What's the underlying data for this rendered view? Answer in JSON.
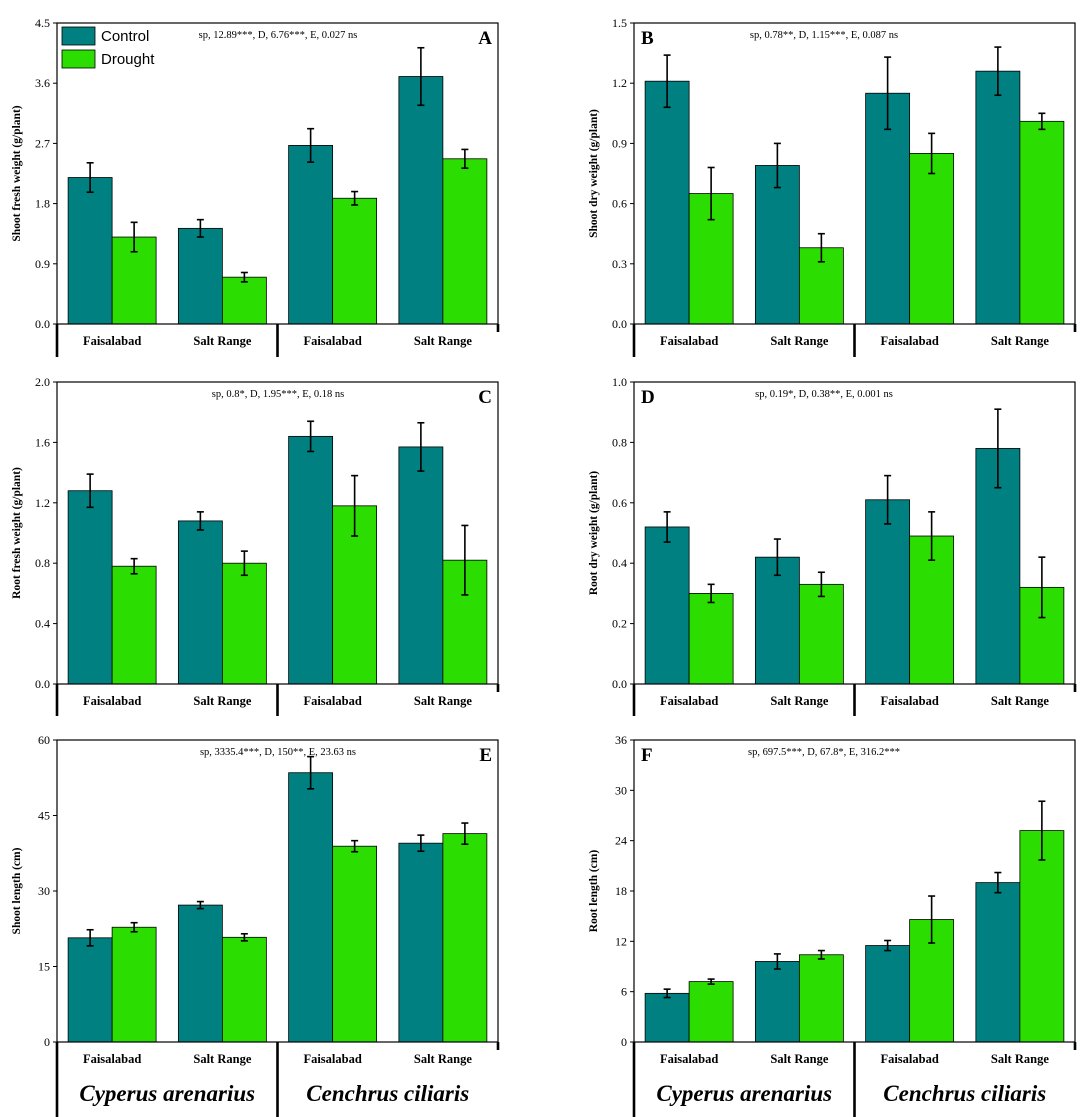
{
  "legend": {
    "items": [
      {
        "label": "Control",
        "color": "#008080"
      },
      {
        "label": "Drought",
        "color": "#2BDD00"
      }
    ]
  },
  "colors": {
    "control": "#008080",
    "drought": "#2BDD00",
    "axis": "#000000"
  },
  "groups": {
    "species": [
      "Cyperus arenarius",
      "Cenchrus ciliaris"
    ],
    "sites": [
      "Faisalabad",
      "Salt Range",
      "Faisalabad",
      "Salt Range"
    ]
  },
  "chart_data": [
    {
      "panel": "A",
      "type": "bar",
      "ylabel": "Shoot fresh weight (g/plant)",
      "annotation": "sp, 12.89***, D, 6.76***, E, 0.027 ns",
      "categories": [
        "Faisalabad",
        "Salt Range",
        "Faisalabad",
        "Salt Range"
      ],
      "ylim": [
        0,
        4.5
      ],
      "yticks": [
        "0.0",
        "0.9",
        "1.8",
        "2.7",
        "3.6",
        "4.5"
      ],
      "series": [
        {
          "name": "Control",
          "values": [
            2.19,
            1.43,
            2.67,
            3.7
          ],
          "errors": [
            0.22,
            0.13,
            0.25,
            0.43
          ]
        },
        {
          "name": "Drought",
          "values": [
            1.3,
            0.7,
            1.88,
            2.47
          ],
          "errors": [
            0.22,
            0.07,
            0.1,
            0.14
          ]
        }
      ]
    },
    {
      "panel": "B",
      "type": "bar",
      "ylabel": "Shoot dry weight (g/plant)",
      "annotation": "sp, 0.78**, D, 1.15***, E, 0.087 ns",
      "categories": [
        "Faisalabad",
        "Salt Range",
        "Faisalabad",
        "Salt Range"
      ],
      "ylim": [
        0,
        1.5
      ],
      "yticks": [
        "0.0",
        "0.3",
        "0.6",
        "0.9",
        "1.2",
        "1.5"
      ],
      "series": [
        {
          "name": "Control",
          "values": [
            1.21,
            0.79,
            1.15,
            1.26
          ],
          "errors": [
            0.13,
            0.11,
            0.18,
            0.12
          ]
        },
        {
          "name": "Drought",
          "values": [
            0.65,
            0.38,
            0.85,
            1.01
          ],
          "errors": [
            0.13,
            0.07,
            0.1,
            0.04
          ]
        }
      ]
    },
    {
      "panel": "C",
      "type": "bar",
      "ylabel": "Root fresh weight (g/plant)",
      "annotation": "sp, 0.8*, D, 1.95***, E, 0.18 ns",
      "categories": [
        "Faisalabad",
        "Salt Range",
        "Faisalabad",
        "Salt Range"
      ],
      "ylim": [
        0,
        2.0
      ],
      "yticks": [
        "0.0",
        "0.4",
        "0.8",
        "1.2",
        "1.6",
        "2.0"
      ],
      "series": [
        {
          "name": "Control",
          "values": [
            1.28,
            1.08,
            1.64,
            1.57
          ],
          "errors": [
            0.11,
            0.06,
            0.1,
            0.16
          ]
        },
        {
          "name": "Drought",
          "values": [
            0.78,
            0.8,
            1.18,
            0.82
          ],
          "errors": [
            0.05,
            0.08,
            0.2,
            0.23
          ]
        }
      ]
    },
    {
      "panel": "D",
      "type": "bar",
      "ylabel": "Root dry weight (g/plant)",
      "annotation": "sp, 0.19*, D, 0.38**, E, 0.001 ns",
      "categories": [
        "Faisalabad",
        "Salt Range",
        "Faisalabad",
        "Salt Range"
      ],
      "ylim": [
        0,
        1.0
      ],
      "yticks": [
        "0.0",
        "0.2",
        "0.4",
        "0.6",
        "0.8",
        "1.0"
      ],
      "series": [
        {
          "name": "Control",
          "values": [
            0.52,
            0.42,
            0.61,
            0.78
          ],
          "errors": [
            0.05,
            0.06,
            0.08,
            0.13
          ]
        },
        {
          "name": "Drought",
          "values": [
            0.3,
            0.33,
            0.49,
            0.32
          ],
          "errors": [
            0.03,
            0.04,
            0.08,
            0.1
          ]
        }
      ]
    },
    {
      "panel": "E",
      "type": "bar",
      "ylabel": "Shoot length (cm)",
      "annotation": "sp, 3335.4***, D, 150**, E, 23.63 ns",
      "categories": [
        "Faisalabad",
        "Salt Range",
        "Faisalabad",
        "Salt Range"
      ],
      "ylim": [
        0,
        60
      ],
      "yticks": [
        "0",
        "15",
        "30",
        "45",
        "60"
      ],
      "series": [
        {
          "name": "Control",
          "values": [
            20.7,
            27.2,
            53.5,
            39.5
          ],
          "errors": [
            1.6,
            0.7,
            3.2,
            1.6
          ]
        },
        {
          "name": "Drought",
          "values": [
            22.8,
            20.8,
            38.9,
            41.4
          ],
          "errors": [
            0.9,
            0.7,
            1.1,
            2.1
          ]
        }
      ]
    },
    {
      "panel": "F",
      "type": "bar",
      "ylabel": "Root length (cm)",
      "annotation": "sp, 697.5***, D, 67.8*, E, 316.2***",
      "categories": [
        "Faisalabad",
        "Salt Range",
        "Faisalabad",
        "Salt Range"
      ],
      "ylim": [
        0,
        36
      ],
      "yticks": [
        "0",
        "6",
        "12",
        "18",
        "24",
        "30",
        "36"
      ],
      "series": [
        {
          "name": "Control",
          "values": [
            5.8,
            9.6,
            11.5,
            19.0
          ],
          "errors": [
            0.5,
            0.9,
            0.6,
            1.2
          ]
        },
        {
          "name": "Drought",
          "values": [
            7.2,
            10.4,
            14.6,
            25.2
          ],
          "errors": [
            0.3,
            0.5,
            2.8,
            3.5
          ]
        }
      ]
    }
  ]
}
